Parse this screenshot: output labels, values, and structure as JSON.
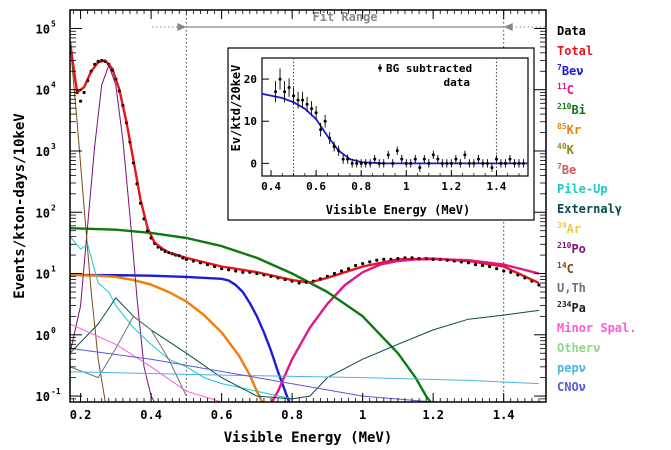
{
  "chart_data": [
    {
      "type": "line",
      "title": "",
      "xlabel": "Visible Energy (MeV)",
      "ylabel": "Events/kton-days/10keV",
      "xlim": [
        0.17,
        1.52
      ],
      "ylim": [
        0.08,
        200000
      ],
      "yscale": "log",
      "x_ticks": [
        "0.2",
        "0.4",
        "0.6",
        "0.8",
        "1",
        "1.2",
        "1.4"
      ],
      "y_ticks": [
        {
          "base": "10",
          "exp": "-1"
        },
        {
          "base": "10",
          "exp": "0"
        },
        {
          "base": "10",
          "exp": "1"
        },
        {
          "base": "10",
          "exp": "2"
        },
        {
          "base": "10",
          "exp": "3"
        },
        {
          "base": "10",
          "exp": "4"
        },
        {
          "base": "10",
          "exp": "5"
        }
      ],
      "annotations": {
        "fit_range_label": "Fit Range",
        "fit_range": [
          0.5,
          1.4
        ]
      },
      "legend_position": "right, outside",
      "legend": [
        {
          "pre": "",
          "sup": "",
          "text": "Data",
          "color": "#000000"
        },
        {
          "pre": "",
          "sup": "",
          "text": "Total",
          "color": "#e8141c"
        },
        {
          "pre": "",
          "sup": "7",
          "text": "Beν",
          "color": "#1c1cd8"
        },
        {
          "pre": "",
          "sup": "11",
          "text": "C",
          "color": "#e0158a"
        },
        {
          "pre": "",
          "sup": "210",
          "text": "Bi",
          "color": "#0d7a10"
        },
        {
          "pre": "",
          "sup": "85",
          "text": "Kr",
          "color": "#f07d0a"
        },
        {
          "pre": "",
          "sup": "40",
          "text": "K",
          "color": "#8a8a1c"
        },
        {
          "pre": "",
          "sup": "7",
          "text": "Be",
          "color": "#d85a5a"
        },
        {
          "pre": "",
          "sup": "",
          "text": "Pile-Up",
          "color": "#1cc8c8"
        },
        {
          "pre": "",
          "sup": "",
          "text": "Externalγ",
          "color": "#0a4a48"
        },
        {
          "pre": "",
          "sup": "39",
          "text": "Ar",
          "color": "#f0c84a"
        },
        {
          "pre": "",
          "sup": "210",
          "text": "Po",
          "color": "#7a1078"
        },
        {
          "pre": "",
          "sup": "14",
          "text": "C",
          "color": "#7a4a14"
        },
        {
          "pre": "",
          "sup": "",
          "text": "U,Th",
          "color": "#707070"
        },
        {
          "pre": "",
          "sup": "234",
          "text": "Pa",
          "color": "#222222"
        },
        {
          "pre": "",
          "sup": "",
          "text": "Minor Spal.",
          "color": "#ff5adc"
        },
        {
          "pre": "",
          "sup": "",
          "text": "Otherν",
          "color": "#8ad88a"
        },
        {
          "pre": "",
          "sup": "",
          "text": "pepν",
          "color": "#48b4e8"
        },
        {
          "pre": "",
          "sup": "",
          "text": "CNOν",
          "color": "#5a5ad8"
        }
      ],
      "series": [
        {
          "name": "Data",
          "style": "points",
          "color": "#000000",
          "x": [
            0.19,
            0.2,
            0.21,
            0.22,
            0.23,
            0.24,
            0.25,
            0.26,
            0.27,
            0.28,
            0.29,
            0.3,
            0.31,
            0.32,
            0.33,
            0.34,
            0.35,
            0.36,
            0.37,
            0.38,
            0.39,
            0.4,
            0.41,
            0.42,
            0.43,
            0.44,
            0.45,
            0.46,
            0.47,
            0.48,
            0.49,
            0.5,
            0.52,
            0.54,
            0.56,
            0.58,
            0.6,
            0.62,
            0.64,
            0.66,
            0.68,
            0.7,
            0.72,
            0.74,
            0.76,
            0.78,
            0.8,
            0.82,
            0.84,
            0.86,
            0.88,
            0.9,
            0.92,
            0.94,
            0.96,
            0.98,
            1.0,
            1.02,
            1.04,
            1.06,
            1.08,
            1.1,
            1.12,
            1.14,
            1.16,
            1.18,
            1.2,
            1.22,
            1.24,
            1.26,
            1.28,
            1.3,
            1.32,
            1.34,
            1.36,
            1.38,
            1.4,
            1.42,
            1.44,
            1.46,
            1.48,
            1.5
          ],
          "y": [
            9000,
            6500,
            9000,
            14000,
            20000,
            26000,
            29000,
            30000,
            29000,
            26000,
            21000,
            15000,
            9500,
            5500,
            2900,
            1400,
            640,
            290,
            140,
            78,
            50,
            38,
            31,
            27,
            25,
            23,
            22,
            21,
            20,
            19.5,
            18,
            17,
            16,
            15,
            14,
            13,
            12,
            11.5,
            11,
            10.5,
            10.5,
            10,
            9.5,
            9,
            8.5,
            8,
            7.5,
            7,
            7.2,
            7.5,
            8.2,
            9,
            10,
            11,
            12,
            13.5,
            14.5,
            15.5,
            16.5,
            17,
            17,
            17.5,
            18,
            18,
            17.5,
            17.5,
            17,
            17,
            16.5,
            16,
            15.5,
            15,
            14,
            13.5,
            13,
            12,
            11,
            10.5,
            9.5,
            8.5,
            7.5,
            6.5
          ]
        },
        {
          "name": "Total",
          "style": "line",
          "color": "#e8141c",
          "x": [
            0.17,
            0.19,
            0.21,
            0.23,
            0.25,
            0.27,
            0.29,
            0.31,
            0.33,
            0.35,
            0.37,
            0.39,
            0.41,
            0.43,
            0.45,
            0.5,
            0.6,
            0.7,
            0.8,
            0.85,
            0.9,
            1.0,
            1.1,
            1.2,
            1.3,
            1.4,
            1.5
          ],
          "y": [
            60000,
            9000,
            11000,
            20000,
            28000,
            30000,
            22000,
            10000,
            3000,
            700,
            160,
            55,
            32,
            26,
            22,
            18,
            13,
            10.5,
            7.8,
            7.1,
            8.5,
            13,
            17,
            17.5,
            16,
            13,
            7
          ]
        },
        {
          "name": "7Beν",
          "style": "line",
          "color": "#1c1cd8",
          "x": [
            0.17,
            0.3,
            0.4,
            0.5,
            0.6,
            0.62,
            0.64,
            0.66,
            0.68,
            0.7,
            0.72,
            0.74,
            0.76,
            0.78,
            0.8
          ],
          "y": [
            9.5,
            9.4,
            9.2,
            8.8,
            8.2,
            7.7,
            6.5,
            5,
            3.3,
            2,
            1.1,
            0.55,
            0.25,
            0.12,
            0.06
          ]
        },
        {
          "name": "11C",
          "style": "line",
          "color": "#e0158a",
          "x": [
            0.73,
            0.76,
            0.8,
            0.85,
            0.9,
            0.95,
            1.0,
            1.05,
            1.1,
            1.15,
            1.2,
            1.3,
            1.4,
            1.5
          ],
          "y": [
            0.06,
            0.12,
            0.4,
            1.3,
            3.2,
            6.5,
            10.5,
            14,
            16,
            17,
            17.2,
            16.5,
            14,
            10
          ]
        },
        {
          "name": "210Bi",
          "style": "line",
          "color": "#0d7a10",
          "x": [
            0.17,
            0.3,
            0.4,
            0.5,
            0.6,
            0.7,
            0.8,
            0.9,
            1.0,
            1.05,
            1.1,
            1.15,
            1.18,
            1.2
          ],
          "y": [
            55,
            52,
            46,
            38,
            28,
            18,
            10,
            5,
            2,
            1,
            0.5,
            0.2,
            0.1,
            0.07
          ]
        },
        {
          "name": "85Kr",
          "style": "line",
          "color": "#f07d0a",
          "x": [
            0.17,
            0.25,
            0.3,
            0.35,
            0.4,
            0.45,
            0.5,
            0.55,
            0.6,
            0.65,
            0.68,
            0.7,
            0.72
          ],
          "y": [
            9.5,
            9.2,
            8.8,
            7.8,
            6.6,
            5,
            3.5,
            2.1,
            1.1,
            0.45,
            0.22,
            0.12,
            0.07
          ]
        },
        {
          "name": "210Po",
          "style": "line",
          "color": "#7a1078",
          "x": [
            0.17,
            0.2,
            0.22,
            0.24,
            0.26,
            0.28,
            0.3,
            0.32,
            0.34,
            0.36,
            0.38,
            0.4,
            0.41
          ],
          "y": [
            0.5,
            3,
            60,
            1200,
            12000,
            25000,
            12000,
            1500,
            90,
            4,
            0.3,
            0.1,
            0.08
          ]
        },
        {
          "name": "14C",
          "style": "line",
          "color": "#7a4a14",
          "x": [
            0.17,
            0.19,
            0.21,
            0.23,
            0.25,
            0.27
          ],
          "y": [
            60000,
            3000,
            120,
            5,
            0.4,
            0.08
          ]
        },
        {
          "name": "Pile-Up",
          "style": "line",
          "color": "#1cc8c8",
          "x": [
            0.17,
            0.2,
            0.22,
            0.25,
            0.28,
            0.3,
            0.35,
            0.4,
            0.45,
            0.5,
            0.55,
            0.6,
            0.7,
            0.8
          ],
          "y": [
            40,
            25,
            30,
            7,
            5,
            3,
            1.3,
            0.7,
            0.4,
            0.3,
            0.2,
            0.16,
            0.12,
            0.09
          ]
        },
        {
          "name": "Externalγ",
          "style": "line",
          "color": "#0a4a48",
          "x": [
            0.17,
            0.25,
            0.3,
            0.35,
            0.4,
            0.5,
            0.6,
            0.7,
            0.8,
            0.85,
            0.9,
            1.0,
            1.1,
            1.2,
            1.3,
            1.4,
            1.5
          ],
          "y": [
            0.5,
            1.5,
            4,
            2,
            1.2,
            0.5,
            0.2,
            0.1,
            0.09,
            0.1,
            0.2,
            0.4,
            0.7,
            1.2,
            1.8,
            2.1,
            2.5
          ]
        },
        {
          "name": "U,Th",
          "style": "line",
          "color": "#707070",
          "x": [
            0.17,
            0.25,
            0.3,
            0.35,
            0.4,
            0.45,
            0.5
          ],
          "y": [
            0.3,
            0.2,
            0.6,
            2,
            1.2,
            0.4,
            0.1
          ]
        },
        {
          "name": "Minor Spal.",
          "style": "line",
          "color": "#ff5adc",
          "x": [
            0.17,
            0.3,
            0.4,
            0.5,
            0.6
          ],
          "y": [
            1.5,
            0.7,
            0.3,
            0.12,
            0.08
          ]
        },
        {
          "name": "pepν",
          "style": "line",
          "color": "#48b4e8",
          "x": [
            0.17,
            0.6,
            1.0,
            1.3,
            1.5
          ],
          "y": [
            0.25,
            0.22,
            0.2,
            0.18,
            0.16
          ]
        },
        {
          "name": "CNOν",
          "style": "line",
          "color": "#5a5ad8",
          "x": [
            0.17,
            0.4,
            0.7,
            1.0,
            1.2
          ],
          "y": [
            0.6,
            0.4,
            0.2,
            0.1,
            0.08
          ]
        }
      ]
    },
    {
      "type": "scatter",
      "title": "",
      "xlabel": "Visible Energy (MeV)",
      "ylabel": "Ev/ktd/20keV",
      "xlim": [
        0.36,
        1.54
      ],
      "ylim": [
        -3,
        25
      ],
      "x_ticks": [
        "0.4",
        "0.6",
        "0.8",
        "1",
        "1.2",
        "1.4"
      ],
      "y_ticks": [
        "0",
        "10",
        "20"
      ],
      "legend": "BG subtracted data",
      "legend_position": "top-right",
      "vlines": [
        0.5,
        1.4
      ],
      "series": [
        {
          "name": "BG subtracted data",
          "style": "points",
          "x": [
            0.42,
            0.44,
            0.46,
            0.48,
            0.5,
            0.52,
            0.54,
            0.56,
            0.58,
            0.6,
            0.62,
            0.64,
            0.66,
            0.68,
            0.7,
            0.72,
            0.74,
            0.76,
            0.78,
            0.8,
            0.82,
            0.84,
            0.86,
            0.88,
            0.9,
            0.92,
            0.94,
            0.96,
            0.98,
            1.0,
            1.02,
            1.04,
            1.06,
            1.08,
            1.1,
            1.12,
            1.14,
            1.16,
            1.18,
            1.2,
            1.22,
            1.24,
            1.26,
            1.28,
            1.3,
            1.32,
            1.34,
            1.36,
            1.38,
            1.4,
            1.42,
            1.44,
            1.46,
            1.48,
            1.5,
            1.52
          ],
          "y": [
            17,
            20,
            17,
            18,
            16,
            15,
            15,
            14,
            13,
            12,
            8,
            10,
            6,
            4,
            3,
            1,
            1,
            0,
            0,
            0,
            0,
            0,
            1,
            0,
            0,
            2,
            0,
            3,
            1,
            0,
            0,
            1,
            -1,
            1,
            0,
            2,
            1,
            0,
            0,
            0,
            1,
            0,
            2,
            0,
            0,
            1,
            0,
            0,
            -1,
            1,
            0,
            0,
            1,
            0,
            0,
            0
          ],
          "err": [
            2.5,
            2.5,
            2.5,
            2.2,
            2,
            2,
            2,
            1.8,
            1.8,
            1.6,
            1.6,
            1.5,
            1.4,
            1.2,
            1.2,
            1.1,
            1.1,
            1,
            1,
            1,
            1,
            1,
            1,
            1,
            1,
            1,
            1,
            1,
            1,
            1,
            1,
            1,
            1,
            1,
            1,
            1,
            1,
            1,
            1,
            1,
            1,
            1,
            1,
            1,
            1,
            1,
            1,
            1,
            1,
            1,
            1,
            1,
            1,
            1,
            1,
            1
          ]
        },
        {
          "name": "fit",
          "style": "line",
          "color": "#1c1cd8",
          "x": [
            0.36,
            0.45,
            0.5,
            0.55,
            0.6,
            0.65,
            0.7,
            0.75,
            0.8,
            0.9,
            1.0,
            1.2,
            1.4,
            1.54
          ],
          "y": [
            16.5,
            15.5,
            14.5,
            13,
            10.5,
            6.5,
            3,
            1,
            0.3,
            0,
            0,
            0,
            0,
            0
          ]
        }
      ]
    }
  ]
}
